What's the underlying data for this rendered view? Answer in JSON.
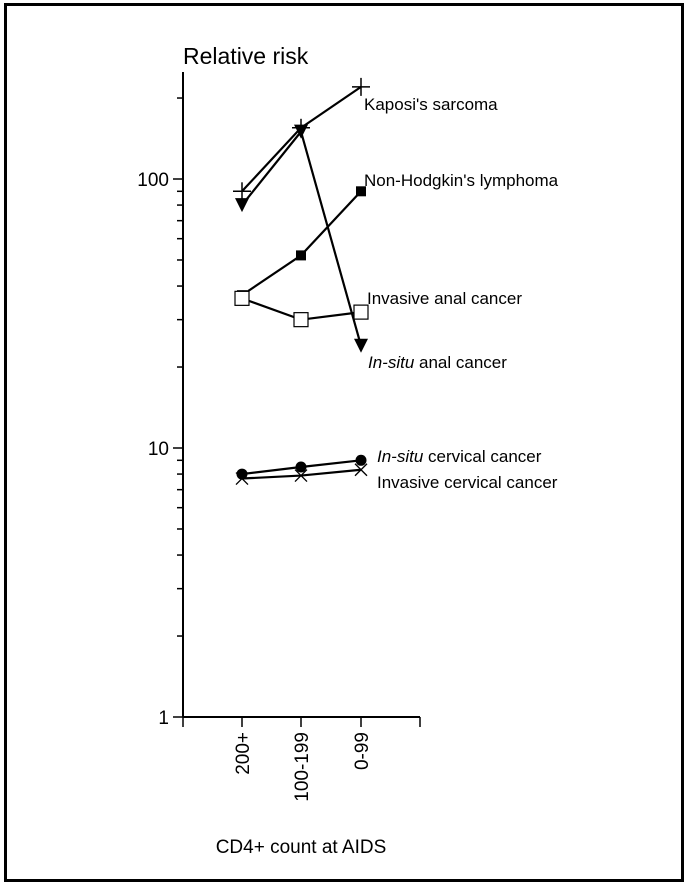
{
  "chart_data": {
    "type": "line",
    "ylabel": "Relative risk",
    "xlabel": "CD4+ count at AIDS",
    "yscale": "log",
    "ylim": [
      1,
      250
    ],
    "yticks": [
      {
        "value": 1,
        "label": "1"
      },
      {
        "value": 10,
        "label": "10"
      },
      {
        "value": 100,
        "label": "100"
      }
    ],
    "categories": [
      "200+",
      "100-199",
      "0-99"
    ],
    "grid": false,
    "series": [
      {
        "name": "Kaposi's sarcoma",
        "marker": "plus",
        "values": [
          90,
          155,
          220
        ]
      },
      {
        "name": "Non-Hodgkin's lymphoma",
        "marker": "filled-square",
        "values": [
          37,
          52,
          90
        ]
      },
      {
        "name": "Invasive anal cancer",
        "marker": "open-square",
        "values": [
          36,
          30,
          32
        ]
      },
      {
        "name": "In-situ anal cancer",
        "italic_prefix": "In-situ",
        "label_rest": " anal cancer",
        "marker": "filled-triangle-down",
        "values": [
          80,
          150,
          24
        ]
      },
      {
        "name": "In-situ cervical cancer",
        "italic_prefix": "In-situ",
        "label_rest": " cervical cancer",
        "marker": "filled-circle",
        "values": [
          8.0,
          8.5,
          9.0
        ]
      },
      {
        "name": "Invasive cervical cancer",
        "marker": "x",
        "values": [
          7.7,
          7.9,
          8.3
        ]
      }
    ]
  }
}
